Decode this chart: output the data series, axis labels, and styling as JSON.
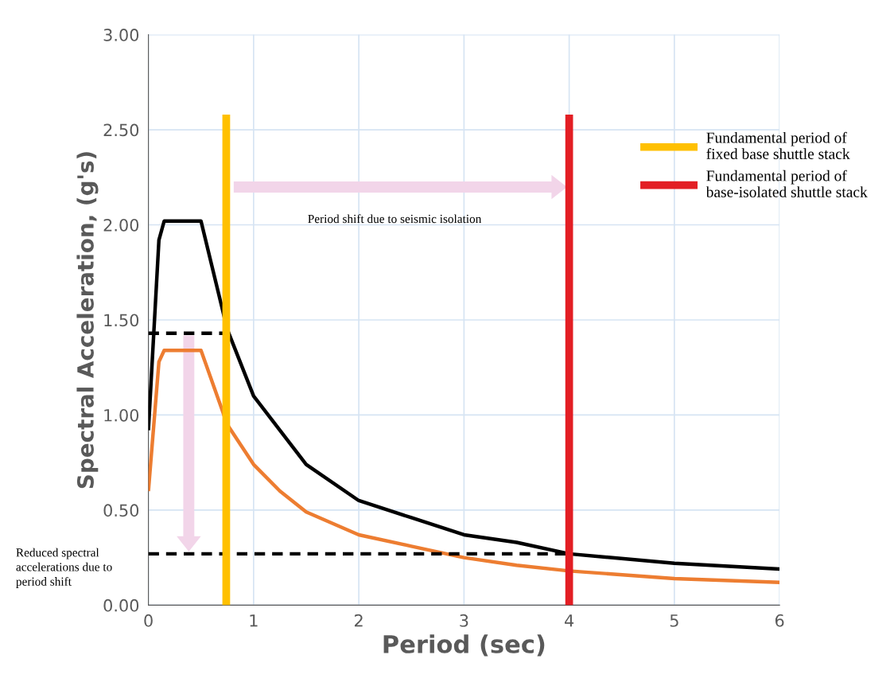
{
  "chart_data": {
    "type": "line",
    "xlabel": "Period (sec)",
    "ylabel": "Spectral Acceleration, (g's)",
    "xlim": [
      0,
      6
    ],
    "xticks": [
      0,
      1,
      2,
      3,
      4,
      5,
      6
    ],
    "ylim": [
      0,
      3
    ],
    "yticks": [
      {
        "value": 0,
        "label": "0.00"
      },
      {
        "value": 0.5,
        "label": "0.50"
      },
      {
        "value": 1,
        "label": "1.00"
      },
      {
        "value": 1.5,
        "label": "1.50"
      },
      {
        "value": 2,
        "label": "2.00"
      },
      {
        "value": 2.5,
        "label": "2.50"
      },
      {
        "value": 3,
        "label": "3.00"
      }
    ],
    "grid": true,
    "legend": "right",
    "marker": "none",
    "series": [
      {
        "color": "#000000",
        "x": [
          0,
          0.1,
          0.15,
          0.5,
          0.75,
          1.0,
          1.25,
          1.5,
          2,
          2.5,
          3,
          3.5,
          4,
          5,
          6
        ],
        "values": [
          0.92,
          1.92,
          2.02,
          2.02,
          1.45,
          1.1,
          0.92,
          0.74,
          0.55,
          0.46,
          0.37,
          0.33,
          0.27,
          0.22,
          0.19
        ]
      },
      {
        "color": "#ed7d31",
        "x": [
          0,
          0.1,
          0.15,
          0.5,
          0.75,
          1.0,
          1.25,
          1.5,
          2,
          2.5,
          3,
          3.5,
          4,
          5,
          6
        ],
        "values": [
          0.6,
          1.28,
          1.34,
          1.34,
          0.95,
          0.74,
          0.6,
          0.49,
          0.37,
          0.31,
          0.25,
          0.21,
          0.18,
          0.14,
          0.12
        ]
      },
      {
        "name": "Fundamental period of\nfixed base shuttle stack",
        "color": "#ffc000",
        "x": [
          0.74,
          0.74
        ],
        "values": [
          0,
          2.58
        ]
      },
      {
        "name": "Fundamental period of\nbase-isolated shuttle stack",
        "color": "#e31e24",
        "x": [
          4,
          4
        ],
        "values": [
          0,
          2.58
        ]
      },
      {
        "color": "#000000",
        "line_style": "dashed",
        "x": [
          0,
          0.74
        ],
        "values": [
          1.43,
          1.43
        ]
      },
      {
        "color": "#000000",
        "line_style": "dashed",
        "x": [
          0,
          4
        ],
        "values": [
          0.27,
          0.27
        ]
      }
    ],
    "annotations": [
      "Period shift due to seismic isolation",
      "Reduced spectral\naccelerations due to\nperiod shift"
    ]
  }
}
